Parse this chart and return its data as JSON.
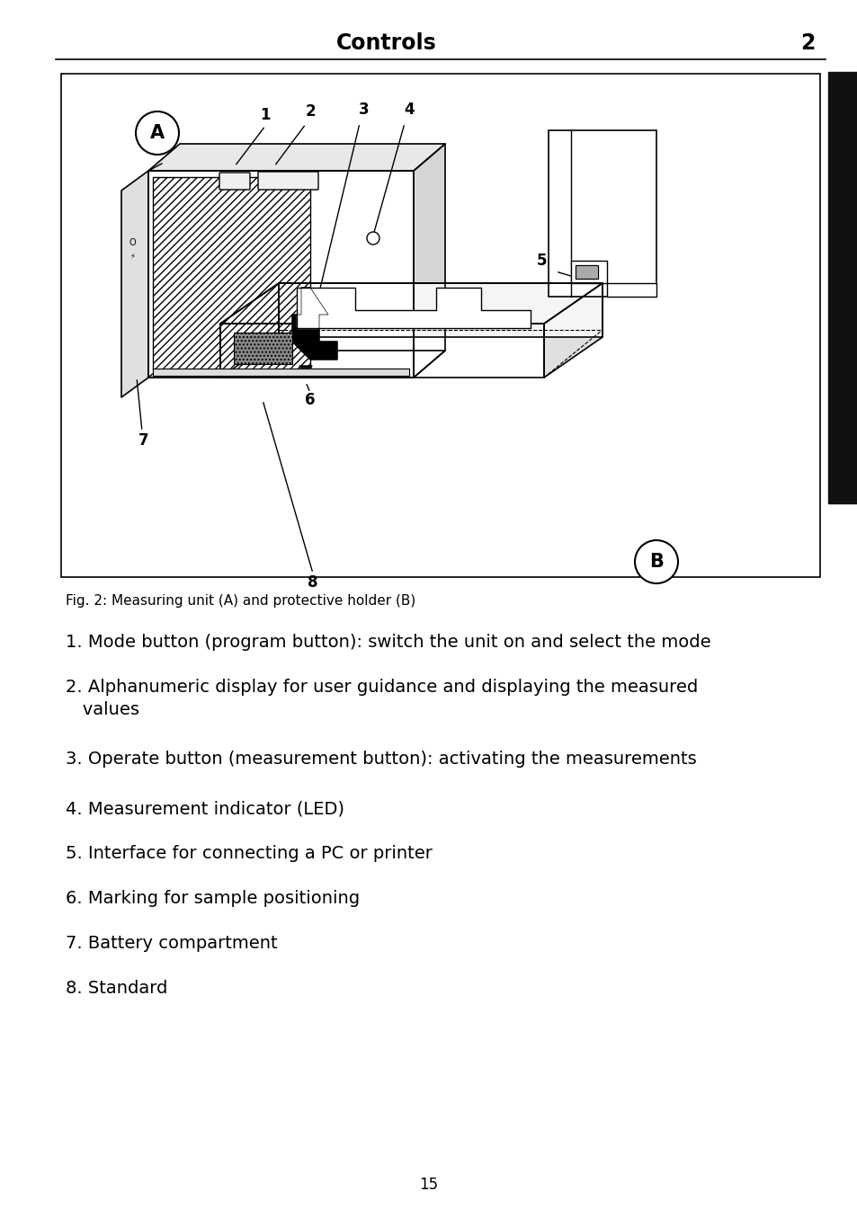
{
  "title": "Controls",
  "page_number": "2",
  "page_footer": "15",
  "bg_color": "#ffffff",
  "title_fontsize": 17,
  "title_fontweight": "bold",
  "fig_caption": "Fig. 2: Measuring unit (A) and protective holder (B)",
  "list_items_raw": [
    [
      "1. Mode button (program button): switch the unit on and select the mode",
      false
    ],
    [
      "2. Alphanumeric display for user guidance and displaying the measured",
      false
    ],
    [
      "   values",
      true
    ],
    [
      "3. Operate button (measurement button): activating the measurements",
      false
    ],
    [
      "4. Measurement indicator (LED)",
      false
    ],
    [
      "5. Interface for connecting a PC or printer",
      false
    ],
    [
      "6. Marking for sample positioning",
      false
    ],
    [
      "7. Battery compartment",
      false
    ],
    [
      "8. Standard",
      false
    ]
  ],
  "list_fontsize": 14,
  "caption_fontsize": 11,
  "black_bar_color": "#111111",
  "line_color": "#000000"
}
